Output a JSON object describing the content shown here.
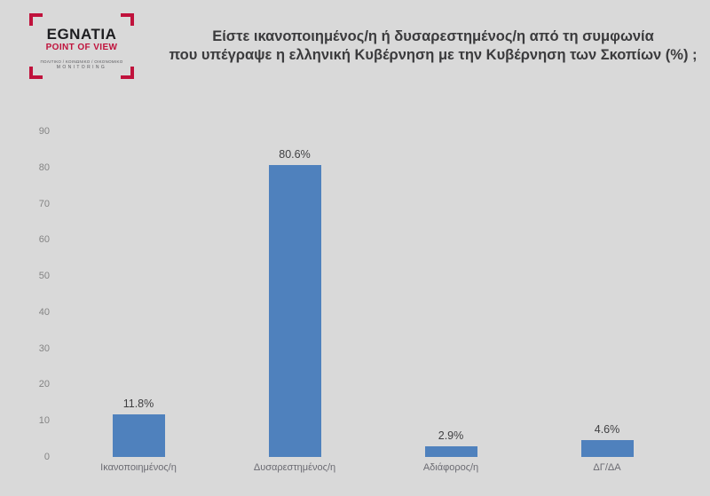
{
  "page": {
    "background_color": "#D9D9D9"
  },
  "logo": {
    "name": "EGNATIA",
    "tagline": "POINT OF VIEW",
    "subline": "ΠΟΛΙΤΙΚΟ / ΚΟΙΝΩΝΙΚΟ / ΟΙΚΟΝΟΜΙΚΟ",
    "monitoring": "MONITORING",
    "accent_color": "#C0123C"
  },
  "title": {
    "line1": "Είστε ικανοποιημένος/η ή δυσαρεστημένος/η  από τη συμφωνία",
    "line2": "που υπέγραψε η ελληνική Κυβέρνηση με την Κυβέρνηση των Σκοπίων (%) ;"
  },
  "chart_data": {
    "type": "bar",
    "title": "Είστε ικανοποιημένος/η ή δυσαρεστημένος/η από τη συμφωνία που υπέγραψε η ελληνική Κυβέρνηση με την Κυβέρνηση των Σκοπίων (%) ;",
    "categories": [
      "Ικανοποιημένος/η",
      "Δυσαρεστημένος/η",
      "Αδιάφορος/η",
      "ΔΓ/ΔΑ"
    ],
    "values": [
      11.8,
      80.6,
      2.9,
      4.6
    ],
    "value_labels": [
      "11.8%",
      "80.6%",
      "2.9%",
      "4.6%"
    ],
    "xlabel": "",
    "ylabel": "",
    "ylim": [
      0,
      90
    ],
    "ytick_step": 10,
    "yticks": [
      0,
      10,
      20,
      30,
      40,
      50,
      60,
      70,
      80,
      90
    ],
    "grid": false,
    "legend": false,
    "bar_color": "#4F81BD",
    "tick_label_color": "#848484",
    "value_label_color": "#3F3F41",
    "category_label_color": "#6B6B72"
  }
}
